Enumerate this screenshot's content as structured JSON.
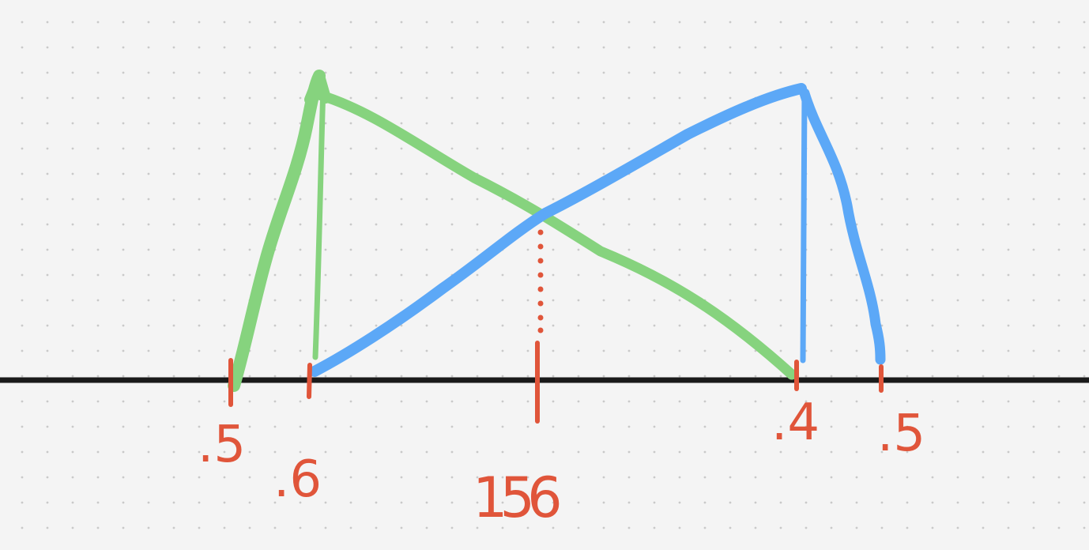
{
  "diagram": {
    "labels": {
      "tick_1": ".5",
      "tick_2": ".6",
      "tick_3": "156",
      "tick_4": ".4",
      "tick_5": ".5"
    },
    "colors": {
      "background": "#f4f4f4",
      "grid_dot": "#c9c9c9",
      "axis": "#1a1a1a",
      "green_curve": "#86d37e",
      "blue_curve": "#5ca8f7",
      "orange_marks": "#e0553a"
    }
  }
}
